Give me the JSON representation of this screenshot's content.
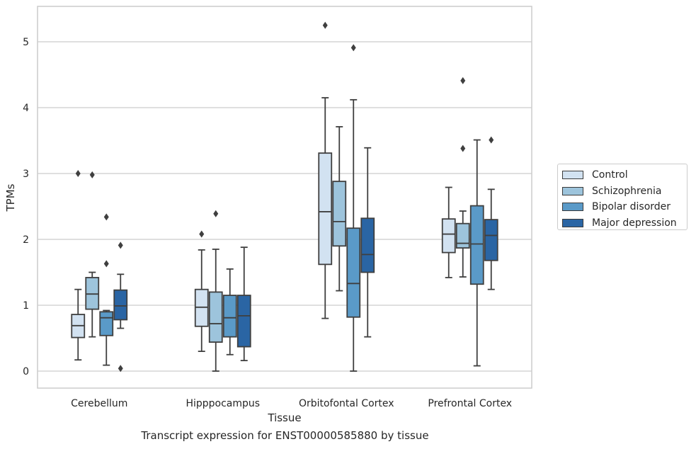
{
  "chart_data": {
    "type": "box",
    "title": "",
    "caption": "Transcript expression for ENST00000585880 by tissue",
    "xlabel": "Tissue",
    "ylabel": "TPMs",
    "ylim": [
      -0.25,
      5.55
    ],
    "yticks": [
      0,
      1,
      2,
      3,
      4,
      5
    ],
    "grid": true,
    "legend_position": "right",
    "categories": [
      "Cerebellum",
      "Hipppocampus",
      "Orbitofontal Cortex",
      "Prefrontal Cortex"
    ],
    "series": [
      {
        "name": "Control",
        "color": "#d2e2f1",
        "boxes": [
          {
            "whislo": 0.17,
            "q1": 0.51,
            "med": 0.69,
            "q3": 0.86,
            "whishi": 1.24,
            "fliers": [
              3.0
            ]
          },
          {
            "whislo": 0.3,
            "q1": 0.68,
            "med": 0.97,
            "q3": 1.24,
            "whishi": 1.84,
            "fliers": [
              2.08
            ]
          },
          {
            "whislo": 0.8,
            "q1": 1.62,
            "med": 2.42,
            "q3": 3.31,
            "whishi": 4.15,
            "fliers": [
              5.25
            ]
          },
          {
            "whislo": 1.42,
            "q1": 1.8,
            "med": 2.08,
            "q3": 2.31,
            "whishi": 2.79,
            "fliers": []
          }
        ]
      },
      {
        "name": "Schizophrenia",
        "color": "#9dc4dc",
        "boxes": [
          {
            "whislo": 0.52,
            "q1": 0.94,
            "med": 1.17,
            "q3": 1.42,
            "whishi": 1.5,
            "fliers": [
              2.98
            ]
          },
          {
            "whislo": 0.0,
            "q1": 0.44,
            "med": 0.72,
            "q3": 1.2,
            "whishi": 1.85,
            "fliers": [
              2.39
            ]
          },
          {
            "whislo": 1.22,
            "q1": 1.9,
            "med": 2.27,
            "q3": 2.88,
            "whishi": 3.71,
            "fliers": []
          },
          {
            "whislo": 1.43,
            "q1": 1.87,
            "med": 1.94,
            "q3": 2.24,
            "whishi": 2.43,
            "fliers": [
              3.38,
              4.41
            ]
          }
        ]
      },
      {
        "name": "Bipolar disorder",
        "color": "#5a9ac8",
        "boxes": [
          {
            "whislo": 0.09,
            "q1": 0.54,
            "med": 0.81,
            "q3": 0.9,
            "whishi": 0.92,
            "fliers": [
              1.63,
              2.34
            ]
          },
          {
            "whislo": 0.25,
            "q1": 0.52,
            "med": 0.81,
            "q3": 1.15,
            "whishi": 1.55,
            "fliers": []
          },
          {
            "whislo": 0.0,
            "q1": 0.82,
            "med": 1.33,
            "q3": 2.17,
            "whishi": 4.12,
            "fliers": [
              4.91
            ]
          },
          {
            "whislo": 0.08,
            "q1": 1.32,
            "med": 1.93,
            "q3": 2.51,
            "whishi": 3.51,
            "fliers": []
          }
        ]
      },
      {
        "name": "Major depression",
        "color": "#2a65a4",
        "boxes": [
          {
            "whislo": 0.65,
            "q1": 0.78,
            "med": 0.99,
            "q3": 1.23,
            "whishi": 1.47,
            "fliers": [
              1.91,
              0.04
            ]
          },
          {
            "whislo": 0.16,
            "q1": 0.37,
            "med": 0.84,
            "q3": 1.15,
            "whishi": 1.88,
            "fliers": []
          },
          {
            "whislo": 0.52,
            "q1": 1.5,
            "med": 1.77,
            "q3": 2.32,
            "whishi": 3.39,
            "fliers": []
          },
          {
            "whislo": 1.24,
            "q1": 1.68,
            "med": 2.06,
            "q3": 2.3,
            "whishi": 2.76,
            "fliers": [
              3.51
            ]
          }
        ]
      }
    ]
  }
}
